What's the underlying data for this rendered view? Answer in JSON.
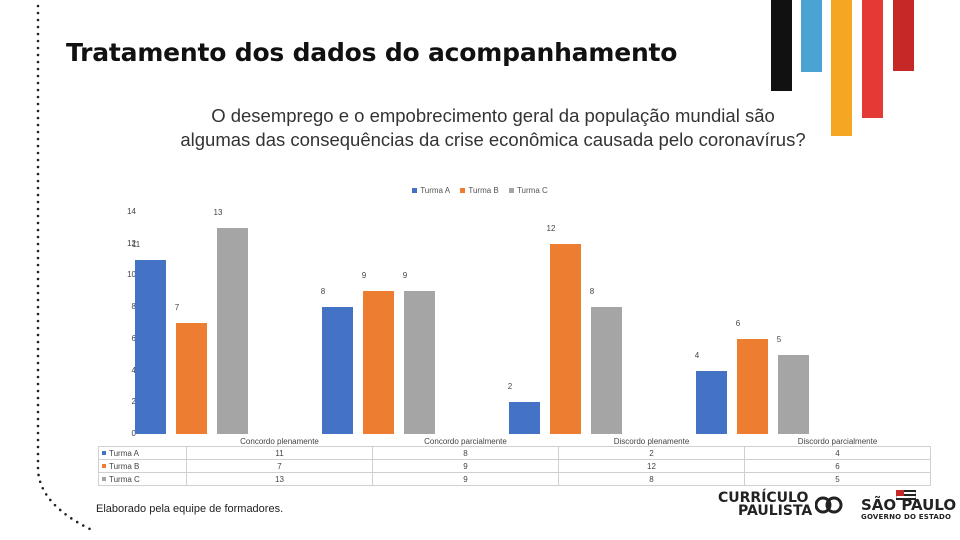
{
  "slide": {
    "title": "Tratamento dos dados do acompanhamento",
    "credit": "Elaborado pela equipe de formadores."
  },
  "colors": {
    "accent_stripes": [
      "#111111",
      "#4ba3d3",
      "#f5a623",
      "#e53935",
      "#c62828"
    ]
  },
  "chart_data": {
    "type": "bar",
    "title": "O desemprego e o empobrecimento geral da população mundial são algumas das consequências da crise econômica causada pelo coronavírus?",
    "categories": [
      "Concordo plenamente",
      "Concordo parcialmente",
      "Discordo plenamente",
      "Discordo parcialmente"
    ],
    "series": [
      {
        "name": "Turma A",
        "color": "#4472c4",
        "values": [
          11,
          8,
          2,
          4
        ]
      },
      {
        "name": "Turma B",
        "color": "#ed7d31",
        "values": [
          7,
          9,
          12,
          6
        ]
      },
      {
        "name": "Turma C",
        "color": "#a5a5a5",
        "values": [
          13,
          9,
          8,
          5
        ]
      }
    ],
    "yticks": [
      0,
      2,
      4,
      6,
      8,
      10,
      12,
      14
    ],
    "ylim": [
      0,
      14
    ],
    "legend": "top",
    "data_table": true,
    "grid": false
  },
  "logos": {
    "curriculo_line1": "CURRÍCULO",
    "curriculo_line2": "PAULISTA",
    "sp_line1": "SÃO PAULO",
    "sp_line2": "GOVERNO DO ESTADO"
  }
}
